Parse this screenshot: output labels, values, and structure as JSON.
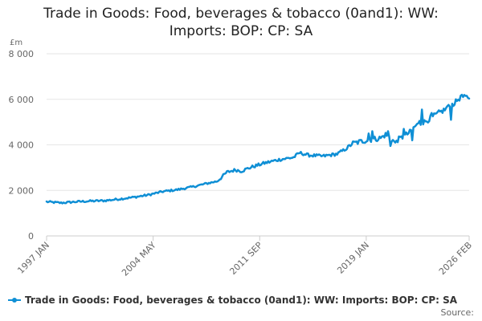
{
  "chart_data": {
    "type": "line",
    "title": "Trade in Goods: Food, beverages & tobacco (0and1): WW: Imports: BOP: CP: SA",
    "ylabel": "£m",
    "xlabel": "",
    "ylim": [
      0,
      8000
    ],
    "yticks": [
      0,
      2000,
      4000,
      6000,
      8000
    ],
    "ytick_labels": [
      "0",
      "2 000",
      "4 000",
      "6 000",
      "8 000"
    ],
    "x_range": [
      "1997 JAN",
      "2026 FEB"
    ],
    "xtick_labels": [
      "1997 JAN",
      "2004 MAY",
      "2011 SEP",
      "2019 JAN",
      "2026 FEB"
    ],
    "grid": true,
    "legend_position": "bottom",
    "credits": "Source:",
    "colors": {
      "series": "#0f8fd5",
      "grid": "#e6e6e6",
      "axis": "#cccccc"
    },
    "series": [
      {
        "name": "Trade in Goods: Food, beverages & tobacco (0and1): WW: Imports: BOP: CP: SA",
        "anchors": [
          [
            "1997 JAN",
            1500
          ],
          [
            "1998 JAN",
            1450
          ],
          [
            "1999 JAN",
            1500
          ],
          [
            "2000 JAN",
            1530
          ],
          [
            "2001 JAN",
            1550
          ],
          [
            "2002 JAN",
            1620
          ],
          [
            "2003 JAN",
            1700
          ],
          [
            "2004 JAN",
            1800
          ],
          [
            "2005 JAN",
            1950
          ],
          [
            "2006 JAN",
            2030
          ],
          [
            "2007 JAN",
            2150
          ],
          [
            "2008 JAN",
            2300
          ],
          [
            "2008 OCT",
            2400
          ],
          [
            "2009 JUN",
            2800
          ],
          [
            "2010 JAN",
            2900
          ],
          [
            "2010 JUN",
            2850
          ],
          [
            "2011 JAN",
            3000
          ],
          [
            "2012 JAN",
            3200
          ],
          [
            "2013 JAN",
            3350
          ],
          [
            "2014 JAN",
            3450
          ],
          [
            "2014 JUN",
            3650
          ],
          [
            "2015 JAN",
            3550
          ],
          [
            "2016 JAN",
            3500
          ],
          [
            "2017 JAN",
            3600
          ],
          [
            "2017 SEP",
            3850
          ],
          [
            "2018 JAN",
            4050
          ],
          [
            "2019 JAN",
            4200
          ],
          [
            "2020 JAN",
            4300
          ],
          [
            "2020 MAY",
            4450
          ],
          [
            "2020 DEC",
            4150
          ],
          [
            "2021 JUN",
            4300
          ],
          [
            "2022 JAN",
            4550
          ],
          [
            "2022 JUN",
            4850
          ],
          [
            "2023 JAN",
            5000
          ],
          [
            "2024 JAN",
            5400
          ],
          [
            "2024 JUN",
            5550
          ],
          [
            "2025 JAN",
            5800
          ],
          [
            "2025 JUN",
            6050
          ],
          [
            "2026 FEB",
            6100
          ]
        ],
        "spikes": [
          [
            "2019 MAR",
            4500
          ],
          [
            "2019 JUN",
            4600
          ],
          [
            "2020 JUL",
            4600
          ],
          [
            "2020 SEP",
            3950
          ],
          [
            "2021 JAN",
            4100
          ],
          [
            "2021 AUG",
            4700
          ],
          [
            "2022 MAR",
            4200
          ],
          [
            "2022 SEP",
            5050
          ],
          [
            "2022 NOV",
            5550
          ],
          [
            "2023 JUL",
            5400
          ],
          [
            "2024 AUG",
            5700
          ],
          [
            "2024 NOV",
            5100
          ],
          [
            "2025 MAR",
            6000
          ],
          [
            "2025 AUG",
            6200
          ]
        ]
      }
    ]
  }
}
